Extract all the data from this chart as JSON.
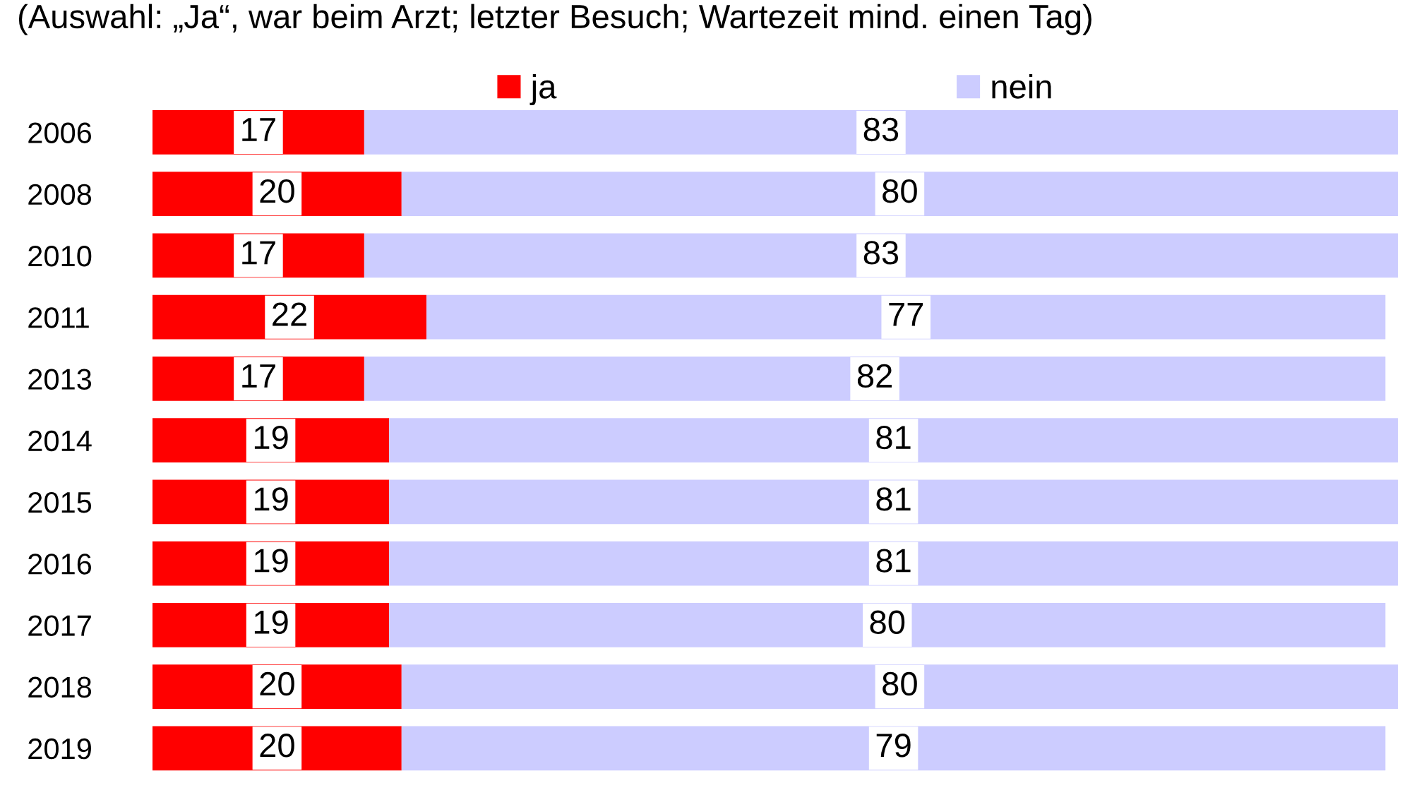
{
  "chart_data": {
    "type": "bar",
    "orientation": "horizontal",
    "stacked": true,
    "subtitle": "(Auswahl: „Ja“, war beim Arzt; letzter Besuch; Wartezeit mind. einen Tag)",
    "categories": [
      "2006",
      "2008",
      "2010",
      "2011",
      "2013",
      "2014",
      "2015",
      "2016",
      "2017",
      "2018",
      "2019"
    ],
    "series": [
      {
        "name": "ja",
        "color": "#ff0000",
        "values": [
          17,
          20,
          17,
          22,
          17,
          19,
          19,
          19,
          19,
          20,
          20
        ]
      },
      {
        "name": "nein",
        "color": "#ccccff",
        "values": [
          83,
          80,
          83,
          77,
          82,
          81,
          81,
          81,
          80,
          80,
          79
        ]
      }
    ],
    "xlim": [
      0,
      100
    ],
    "data_labels": true,
    "legend": "top",
    "grid": false,
    "tick_labels": "y"
  }
}
